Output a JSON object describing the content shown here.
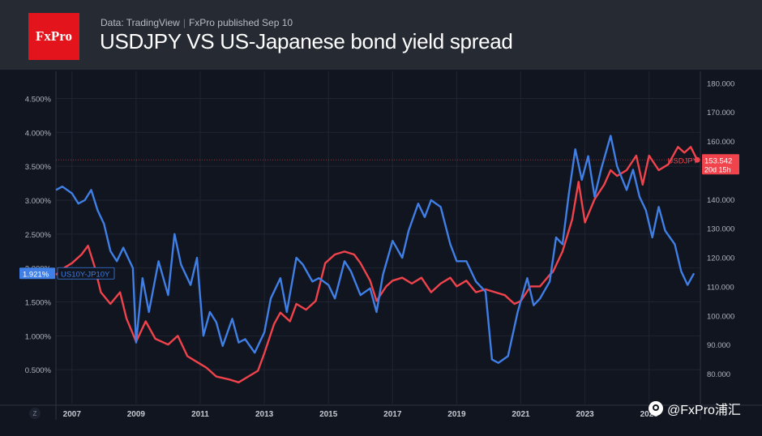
{
  "header": {
    "logo": "FxPro",
    "source": "Data: TradingView",
    "separator": "|",
    "published": "FxPro published Sep 10",
    "title": "USDJPY VS US-Japanese bond yield spread"
  },
  "watermark": {
    "icon": "wechat-icon",
    "text": "@FxPro浦汇"
  },
  "axis_corner_label": "Z",
  "chart_data": {
    "type": "line",
    "title": "USDJPY VS US-Japanese bond yield spread",
    "x_tick_labels": [
      "2007",
      "2009",
      "2011",
      "2013",
      "2015",
      "2017",
      "2019",
      "2021",
      "2023",
      "2025"
    ],
    "x_range": [
      2006.5,
      2026.6
    ],
    "y_left": {
      "range": [
        0.0,
        4.9
      ],
      "tick_labels": [
        "0.500%",
        "1.000%",
        "1.500%",
        "2.000%",
        "2.500%",
        "3.000%",
        "3.500%",
        "4.000%",
        "4.500%"
      ],
      "tick_values": [
        0.5,
        1.0,
        1.5,
        2.0,
        2.5,
        3.0,
        3.5,
        4.0,
        4.5
      ]
    },
    "y_right": {
      "range": [
        69.7,
        184.0
      ],
      "tick_labels": [
        "80.000",
        "90.000",
        "100.000",
        "110.000",
        "120.000",
        "130.000",
        "140.000",
        "150.000",
        "160.000",
        "170.000",
        "180.000"
      ],
      "tick_values": [
        80,
        90,
        100,
        110,
        120,
        130,
        140,
        150,
        160,
        170,
        180
      ]
    },
    "grid": true,
    "colors": {
      "spread": "#3f7fe6",
      "usdjpy": "#f0434c"
    },
    "series": [
      {
        "name": "US10Y-JP10Y",
        "axis": "left",
        "last_label": "1.921%",
        "x": [
          2006.5,
          2006.7,
          2007.0,
          2007.2,
          2007.4,
          2007.6,
          2007.8,
          2008.0,
          2008.2,
          2008.4,
          2008.6,
          2008.9,
          2009.0,
          2009.2,
          2009.4,
          2009.7,
          2010.0,
          2010.2,
          2010.4,
          2010.7,
          2010.9,
          2011.1,
          2011.3,
          2011.5,
          2011.7,
          2012.0,
          2012.2,
          2012.4,
          2012.7,
          2013.0,
          2013.2,
          2013.5,
          2013.7,
          2014.0,
          2014.2,
          2014.5,
          2014.7,
          2015.0,
          2015.2,
          2015.5,
          2015.7,
          2016.0,
          2016.3,
          2016.5,
          2016.7,
          2017.0,
          2017.3,
          2017.5,
          2017.8,
          2018.0,
          2018.2,
          2018.5,
          2018.8,
          2019.0,
          2019.3,
          2019.6,
          2019.9,
          2020.1,
          2020.3,
          2020.6,
          2020.9,
          2021.2,
          2021.4,
          2021.6,
          2021.9,
          2022.1,
          2022.3,
          2022.5,
          2022.7,
          2022.9,
          2023.1,
          2023.3,
          2023.5,
          2023.8,
          2024.0,
          2024.3,
          2024.5,
          2024.7,
          2024.9,
          2025.1,
          2025.3,
          2025.5,
          2025.8,
          2026.0,
          2026.2,
          2026.4
        ],
        "values": [
          3.15,
          3.2,
          3.1,
          2.95,
          3.0,
          3.15,
          2.85,
          2.65,
          2.25,
          2.1,
          2.3,
          2.0,
          0.9,
          1.85,
          1.35,
          2.1,
          1.6,
          2.5,
          2.05,
          1.75,
          2.15,
          1.0,
          1.35,
          1.2,
          0.85,
          1.25,
          0.9,
          0.95,
          0.75,
          1.05,
          1.55,
          1.85,
          1.35,
          2.15,
          2.05,
          1.8,
          1.85,
          1.75,
          1.55,
          2.1,
          1.95,
          1.6,
          1.7,
          1.35,
          1.9,
          2.4,
          2.15,
          2.55,
          2.95,
          2.75,
          3.0,
          2.9,
          2.35,
          2.1,
          2.1,
          1.8,
          1.65,
          0.65,
          0.6,
          0.7,
          1.35,
          1.85,
          1.45,
          1.55,
          1.8,
          2.45,
          2.35,
          3.1,
          3.75,
          3.3,
          3.65,
          3.05,
          3.45,
          3.95,
          3.5,
          3.15,
          3.45,
          3.05,
          2.85,
          2.45,
          2.9,
          2.55,
          2.35,
          1.95,
          1.75,
          1.921
        ]
      },
      {
        "name": "USDJPY",
        "axis": "right",
        "last_label": "153.542",
        "countdown": "20d 15h",
        "x": [
          2006.5,
          2006.7,
          2007.0,
          2007.3,
          2007.5,
          2007.7,
          2007.9,
          2008.2,
          2008.5,
          2008.7,
          2009.0,
          2009.3,
          2009.6,
          2010.0,
          2010.3,
          2010.6,
          2010.9,
          2011.2,
          2011.5,
          2011.9,
          2012.2,
          2012.5,
          2012.8,
          2013.0,
          2013.3,
          2013.5,
          2013.8,
          2014.0,
          2014.3,
          2014.6,
          2014.9,
          2015.2,
          2015.5,
          2015.8,
          2016.0,
          2016.3,
          2016.5,
          2016.8,
          2017.0,
          2017.3,
          2017.6,
          2017.9,
          2018.2,
          2018.5,
          2018.8,
          2019.0,
          2019.3,
          2019.6,
          2019.9,
          2020.2,
          2020.5,
          2020.8,
          2021.0,
          2021.3,
          2021.6,
          2021.9,
          2022.0,
          2022.3,
          2022.6,
          2022.8,
          2023.0,
          2023.3,
          2023.6,
          2023.8,
          2024.0,
          2024.3,
          2024.6,
          2024.8,
          2025.0,
          2025.3,
          2025.6,
          2025.9,
          2026.1,
          2026.3,
          2026.5
        ],
        "values": [
          114,
          116,
          118,
          121,
          124,
          117,
          108,
          104,
          108,
          99,
          91,
          98,
          92,
          90,
          93,
          86,
          84,
          82,
          79,
          78,
          77,
          79,
          81,
          87,
          97,
          101,
          98,
          104,
          102,
          105,
          118,
          121,
          122,
          121,
          118,
          112,
          105,
          110,
          112,
          113,
          111,
          113,
          108,
          111,
          113,
          110,
          112,
          108,
          109,
          108,
          107,
          104,
          105,
          110,
          110,
          114,
          115,
          122,
          133,
          146,
          132,
          140,
          145,
          150,
          148,
          150,
          155,
          145,
          155,
          150,
          152,
          158,
          156,
          158,
          153.542
        ]
      }
    ]
  }
}
